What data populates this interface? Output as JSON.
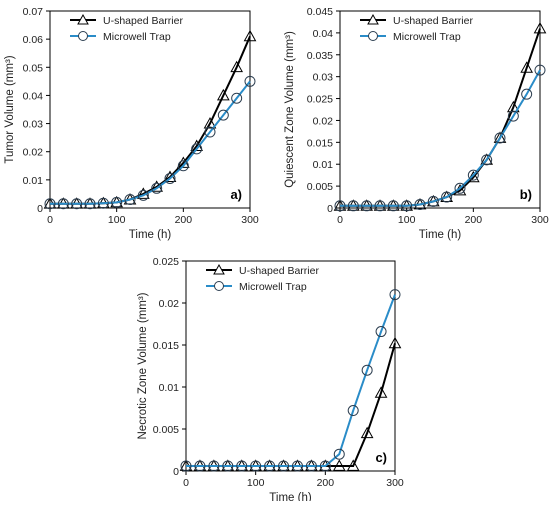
{
  "colors": {
    "u_shaped": "#000000",
    "microwell": "#2a8cc8"
  },
  "chart_data": [
    {
      "type": "line",
      "panel_label": "a)",
      "xlabel": "Time (h)",
      "ylabel": "Tumor Volume (mm³)",
      "xlim": [
        0,
        300
      ],
      "ylim": [
        0,
        0.07
      ],
      "xticks": [
        "0",
        "100",
        "200",
        "300"
      ],
      "yticks": [
        "0",
        "0.01",
        "0.02",
        "0.03",
        "0.04",
        "0.05",
        "0.06",
        "0.07"
      ],
      "legend_position": "top-left",
      "grid": false,
      "series": [
        {
          "name": "U-shaped Barrier",
          "marker": "triangle",
          "color": "#000000",
          "x": [
            0,
            20,
            40,
            60,
            80,
            100,
            120,
            140,
            160,
            180,
            200,
            220,
            240,
            260,
            280,
            300
          ],
          "y": [
            0.0015,
            0.0015,
            0.0015,
            0.0015,
            0.0017,
            0.002,
            0.003,
            0.005,
            0.0075,
            0.011,
            0.016,
            0.022,
            0.03,
            0.04,
            0.05,
            0.061
          ]
        },
        {
          "name": "Microwell Trap",
          "marker": "circle",
          "color": "#2a8cc8",
          "x": [
            0,
            20,
            40,
            60,
            80,
            100,
            120,
            140,
            160,
            180,
            200,
            220,
            240,
            260,
            280,
            300
          ],
          "y": [
            0.0015,
            0.0015,
            0.0015,
            0.0015,
            0.0017,
            0.002,
            0.003,
            0.0045,
            0.007,
            0.0105,
            0.015,
            0.021,
            0.027,
            0.033,
            0.039,
            0.045
          ]
        }
      ]
    },
    {
      "type": "line",
      "panel_label": "b)",
      "xlabel": "Time (h)",
      "ylabel": "Quiescent Zone Volume (mm³)",
      "xlim": [
        0,
        300
      ],
      "ylim": [
        0,
        0.045
      ],
      "xticks": [
        "0",
        "100",
        "200",
        "300"
      ],
      "yticks": [
        "0",
        "0.005",
        "0.01",
        "0.015",
        "0.02",
        "0.025",
        "0.03",
        "0.035",
        "0.04",
        "0.045"
      ],
      "legend_position": "top-left",
      "grid": false,
      "series": [
        {
          "name": "U-shaped Barrier",
          "marker": "triangle",
          "color": "#000000",
          "x": [
            0,
            20,
            40,
            60,
            80,
            100,
            120,
            140,
            160,
            180,
            200,
            220,
            240,
            260,
            280,
            300
          ],
          "y": [
            0.0005,
            0.0005,
            0.0005,
            0.0005,
            0.0005,
            0.0005,
            0.0008,
            0.0015,
            0.0025,
            0.004,
            0.007,
            0.011,
            0.016,
            0.023,
            0.032,
            0.041
          ]
        },
        {
          "name": "Microwell Trap",
          "marker": "circle",
          "color": "#2a8cc8",
          "x": [
            0,
            20,
            40,
            60,
            80,
            100,
            120,
            140,
            160,
            180,
            200,
            220,
            240,
            260,
            280,
            300
          ],
          "y": [
            0.0005,
            0.0005,
            0.0005,
            0.0005,
            0.0005,
            0.0005,
            0.0008,
            0.0015,
            0.0025,
            0.0045,
            0.0075,
            0.011,
            0.016,
            0.021,
            0.026,
            0.0315
          ]
        }
      ]
    },
    {
      "type": "line",
      "panel_label": "c)",
      "xlabel": "Time (h)",
      "ylabel": "Necrotic Zone Volume (mm³)",
      "xlim": [
        0,
        300
      ],
      "ylim": [
        0,
        0.025
      ],
      "xticks": [
        "0",
        "100",
        "200",
        "300"
      ],
      "yticks": [
        "0",
        "0.005",
        "0.01",
        "0.015",
        "0.02",
        "0.025"
      ],
      "legend_position": "top-left",
      "grid": false,
      "series": [
        {
          "name": "U-shaped Barrier",
          "marker": "triangle",
          "color": "#000000",
          "x": [
            0,
            20,
            40,
            60,
            80,
            100,
            120,
            140,
            160,
            180,
            200,
            220,
            240,
            260,
            280,
            300
          ],
          "y": [
            0.0006,
            0.0006,
            0.0006,
            0.0006,
            0.0006,
            0.0006,
            0.0006,
            0.0006,
            0.0006,
            0.0006,
            0.0006,
            0.0006,
            0.0006,
            0.0045,
            0.0093,
            0.0152
          ]
        },
        {
          "name": "Microwell Trap",
          "marker": "circle",
          "color": "#2a8cc8",
          "x": [
            0,
            20,
            40,
            60,
            80,
            100,
            120,
            140,
            160,
            180,
            200,
            220,
            240,
            260,
            280,
            300
          ],
          "y": [
            0.0006,
            0.0006,
            0.0006,
            0.0006,
            0.0006,
            0.0006,
            0.0006,
            0.0006,
            0.0006,
            0.0006,
            0.0006,
            0.002,
            0.0072,
            0.012,
            0.0166,
            0.021
          ]
        }
      ]
    }
  ]
}
